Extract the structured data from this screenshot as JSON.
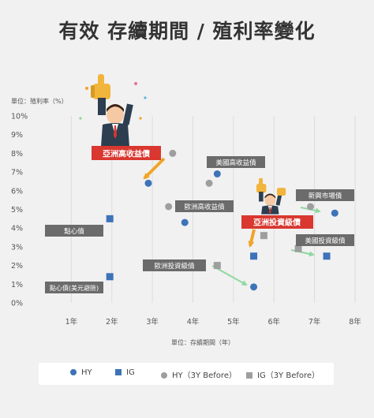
{
  "title": "有效 存續期間 / 殖利率變化",
  "chart_data": {
    "type": "scatter",
    "title": "有效 存續期間 / 殖利率變化",
    "ylabel": "單位：殖利率（%）",
    "xlabel": "單位：存續期間（年）",
    "xlim": [
      0,
      8
    ],
    "ylim": [
      0,
      10
    ],
    "xticks": [
      "1年",
      "2年",
      "3年",
      "4年",
      "5年",
      "6年",
      "7年",
      "8年"
    ],
    "yticks": [
      "0%",
      "1%",
      "2%",
      "3%",
      "4%",
      "5%",
      "6%",
      "7%",
      "8%",
      "9%",
      "10%"
    ],
    "grid": "vertical",
    "legend_position": "bottom",
    "series": [
      {
        "name": "HY",
        "marker": "circle",
        "color": "#3d73b8",
        "points": [
          [
            2.9,
            6.4
          ],
          [
            3.8,
            4.3
          ],
          [
            4.6,
            6.9
          ],
          [
            5.5,
            0.85
          ],
          [
            7.5,
            4.8
          ]
        ]
      },
      {
        "name": "IG",
        "marker": "square",
        "color": "#3d73b8",
        "points": [
          [
            1.95,
            4.5
          ],
          [
            1.95,
            1.4
          ],
          [
            5.5,
            2.5
          ],
          [
            7.3,
            2.5
          ]
        ]
      },
      {
        "name": "HY（3Y Before）",
        "marker": "circle",
        "color": "#9e9e9e",
        "points": [
          [
            3.5,
            8.0
          ],
          [
            3.4,
            5.15
          ],
          [
            4.4,
            6.4
          ],
          [
            6.9,
            5.15
          ]
        ]
      },
      {
        "name": "IG（3Y Before）",
        "marker": "square",
        "color": "#9e9e9e",
        "points": [
          [
            1.3,
            3.85
          ],
          [
            1.5,
            0.7
          ],
          [
            4.6,
            2.0
          ],
          [
            5.75,
            3.6
          ],
          [
            6.6,
            2.9
          ]
        ]
      }
    ],
    "annotations": [
      {
        "text": "亞洲高收益債",
        "style": "red"
      },
      {
        "text": "亞洲投資級債",
        "style": "red"
      },
      {
        "text": "美國高收益債",
        "style": "gray"
      },
      {
        "text": "歐洲高收益債",
        "style": "gray"
      },
      {
        "text": "新興市場債",
        "style": "gray"
      },
      {
        "text": "美國投資級債",
        "style": "gray"
      },
      {
        "text": "點心債",
        "style": "gray"
      },
      {
        "text": "歐洲投資級債",
        "style": "gray"
      },
      {
        "text": "點心債(美元避險)",
        "style": "gray"
      }
    ]
  },
  "colors": {
    "background": "#f1f1f1",
    "blue": "#3d73b8",
    "gray_marker": "#9e9e9e",
    "label_gray": "#6b6b6b",
    "label_red": "#d9372f",
    "arrow_orange": "#f0a52a",
    "arrow_green": "#8fd8a0"
  },
  "illustrations": [
    "businessman-thumbs-up-icon",
    "businessman-thumbs-up-icon"
  ]
}
